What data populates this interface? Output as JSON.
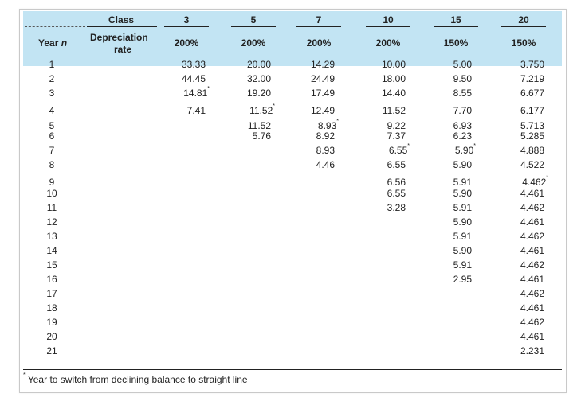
{
  "header": {
    "class_label": "Class",
    "year_label": "Year",
    "year_var": "n",
    "depr_label_line1": "Depreciation",
    "depr_label_line2": "rate",
    "classes": [
      "3",
      "5",
      "7",
      "10",
      "15",
      "20"
    ],
    "rates": [
      "200%",
      "200%",
      "200%",
      "200%",
      "150%",
      "150%"
    ]
  },
  "years": [
    "1",
    "2",
    "3",
    "4",
    "5",
    "6",
    "7",
    "8",
    "9",
    "10",
    "11",
    "12",
    "13",
    "14",
    "15",
    "16",
    "17",
    "18",
    "19",
    "20",
    "21"
  ],
  "columns": [
    [
      "33.33",
      "44.45",
      "14.81",
      "7.41"
    ],
    [
      "20.00",
      "32.00",
      "19.20",
      "11.52",
      "11.52",
      "5.76"
    ],
    [
      "14.29",
      "24.49",
      "17.49",
      "12.49",
      "8.93",
      "8.92",
      "8.93",
      "4.46"
    ],
    [
      "10.00",
      "18.00",
      "14.40",
      "11.52",
      "9.22",
      "7.37",
      "6.55",
      "6.55",
      "6.56",
      "6.55",
      "3.28"
    ],
    [
      "5.00",
      "9.50",
      "8.55",
      "7.70",
      "6.93",
      "6.23",
      "5.90",
      "5.90",
      "5.91",
      "5.90",
      "5.91",
      "5.90",
      "5.91",
      "5.90",
      "5.91",
      "2.95"
    ],
    [
      "3.750",
      "7.219",
      "6.677",
      "6.177",
      "5.713",
      "5.285",
      "4.888",
      "4.522",
      "4.462",
      "4.461",
      "4.462",
      "4.461",
      "4.462",
      "4.461",
      "4.462",
      "4.461",
      "4.462",
      "4.461",
      "4.462",
      "4.461",
      "2.231"
    ]
  ],
  "switch_marks": [
    2,
    3,
    4,
    6,
    6,
    8
  ],
  "asterisk": "*",
  "footnote": {
    "mark": "*",
    "text": "Year to switch from declining balance to straight line"
  }
}
